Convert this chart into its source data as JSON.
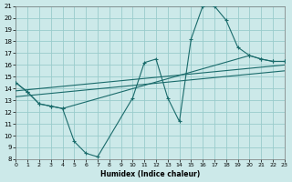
{
  "bg_color": "#cce9e9",
  "grid_color": "#99cccc",
  "line_color": "#1a6b6b",
  "xlabel": "Humidex (Indice chaleur)",
  "xlim": [
    0,
    23
  ],
  "ylim": [
    8,
    21
  ],
  "xticks": [
    0,
    1,
    2,
    3,
    4,
    5,
    6,
    7,
    8,
    9,
    10,
    11,
    12,
    13,
    14,
    15,
    16,
    17,
    18,
    19,
    20,
    21,
    22,
    23
  ],
  "yticks": [
    8,
    9,
    10,
    11,
    12,
    13,
    14,
    15,
    16,
    17,
    18,
    19,
    20,
    21
  ],
  "curve1_x": [
    0,
    1,
    2,
    3,
    4,
    5,
    6,
    7,
    10,
    11,
    12,
    13,
    14,
    15,
    16,
    17,
    18,
    19,
    20,
    21,
    22,
    23
  ],
  "curve1_y": [
    14.5,
    13.7,
    12.7,
    12.5,
    12.3,
    9.5,
    8.5,
    8.2,
    13.2,
    16.2,
    16.5,
    13.2,
    11.2,
    18.2,
    21.0,
    21.0,
    19.8,
    17.5,
    16.8,
    16.5,
    16.3,
    16.3
  ],
  "curve2_x": [
    0,
    1,
    2,
    3,
    4,
    20,
    21,
    22,
    23
  ],
  "curve2_y": [
    14.5,
    13.7,
    12.7,
    12.5,
    12.3,
    16.8,
    16.5,
    16.3,
    16.3
  ],
  "line3_x": [
    0,
    23
  ],
  "line3_y": [
    13.8,
    16.0
  ],
  "line4_x": [
    0,
    23
  ],
  "line4_y": [
    13.3,
    15.5
  ]
}
